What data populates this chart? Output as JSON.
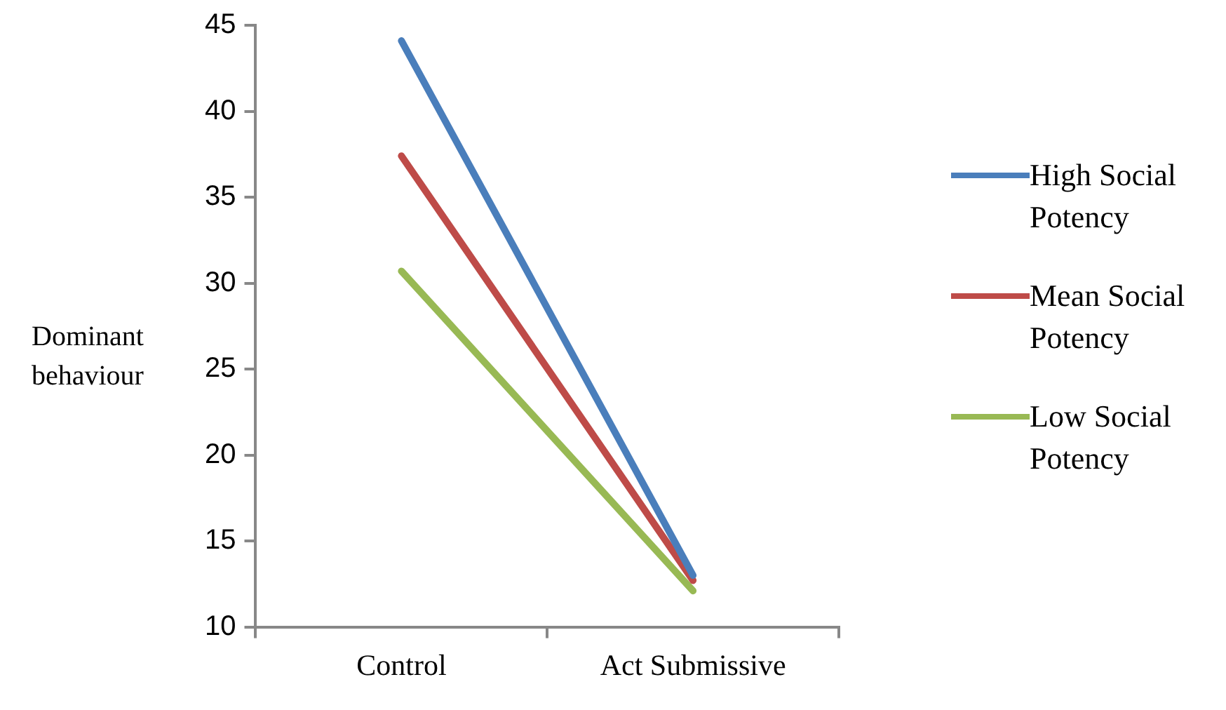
{
  "chart_data": {
    "type": "line",
    "ylabel": "Dominant behaviour",
    "categories": [
      "Control",
      "Act Submissive"
    ],
    "series": [
      {
        "name": "High Social Potency",
        "color": "#4a7ebb",
        "values": [
          44.1,
          13.0
        ]
      },
      {
        "name": "Mean Social Potency",
        "color": "#be4b48",
        "values": [
          37.4,
          12.7
        ]
      },
      {
        "name": "Low Social Potency",
        "color": "#98b954",
        "values": [
          30.7,
          12.1
        ]
      }
    ],
    "ylim": [
      10,
      45
    ],
    "yticks": [
      10,
      15,
      20,
      25,
      30,
      35,
      40,
      45
    ],
    "grid": false,
    "legend": "right",
    "marker": "none",
    "line_style": "solid"
  }
}
